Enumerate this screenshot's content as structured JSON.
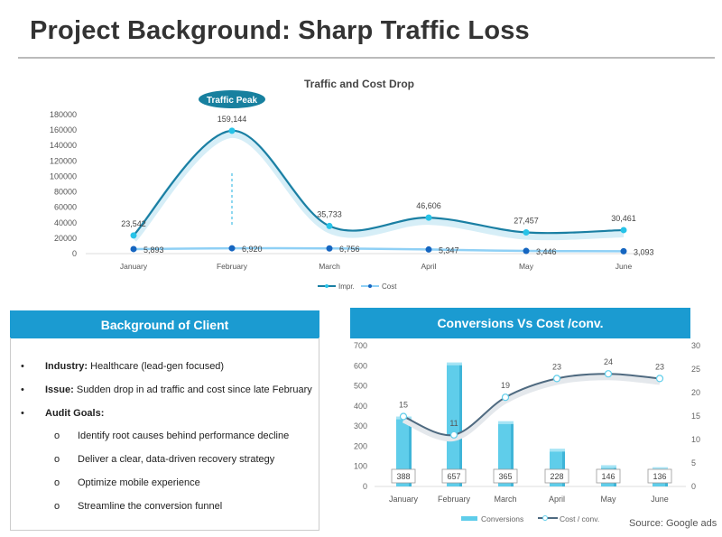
{
  "title": "Project Background: Sharp Traffic Loss",
  "client_box": {
    "header": "Background of Client",
    "bullets": [
      {
        "label": "Industry:",
        "text": " Healthcare (lead-gen focused)"
      },
      {
        "label": "Issue:",
        "text": " Sudden drop in ad traffic and cost since late February"
      },
      {
        "label": "Audit Goals:",
        "text": ""
      }
    ],
    "sub_bullets": [
      "Identify root causes behind performance decline",
      "Deliver a clear, data-driven recovery strategy",
      "Optimize mobile experience",
      "Streamline the conversion funnel"
    ],
    "bullet_marker": "•",
    "sub_marker": "o"
  },
  "conv_header": "Conversions Vs Cost /conv.",
  "source": "Source: Google ads",
  "colors": {
    "header_blue": "#1b9bd1",
    "impr": "#1a7fa3",
    "impr_marker": "#27c3e8",
    "cost_line": "#8fd0f5",
    "cost_marker": "#1565c0",
    "bars": "#5fcdea",
    "cpc_line": "#4f6a80",
    "callout": "#17809f"
  },
  "chart_data": [
    {
      "type": "line",
      "title": "Traffic and Cost Drop",
      "categories": [
        "January",
        "February",
        "March",
        "April",
        "May",
        "June"
      ],
      "series": [
        {
          "name": "Impr.",
          "values": [
            23542,
            159144,
            35733,
            46606,
            27457,
            30461
          ],
          "labels": [
            "23,542",
            "159,144",
            "35,733",
            "46,606",
            "27,457",
            "30,461"
          ]
        },
        {
          "name": "Cost",
          "values": [
            5893,
            6920,
            6756,
            5347,
            3446,
            3093
          ],
          "labels": [
            "5,893",
            "6,920",
            "6,756",
            "5,347",
            "3,446",
            "3,093"
          ]
        }
      ],
      "ylim": [
        0,
        180000
      ],
      "yticks": [
        "0",
        "20000",
        "40000",
        "60000",
        "80000",
        "100000",
        "120000",
        "140000",
        "160000",
        "180000"
      ],
      "annotation": "Traffic Peak",
      "legend": "bottom",
      "grid": false
    },
    {
      "type": "bar+line",
      "categories": [
        "January",
        "February",
        "March",
        "April",
        "May",
        "June"
      ],
      "series": [
        {
          "name": "Conversions",
          "axis": "left",
          "values": [
            388,
            657,
            365,
            228,
            146,
            136
          ]
        },
        {
          "name": "Cost / conv.",
          "axis": "right",
          "values": [
            15,
            11,
            19,
            23,
            24,
            23
          ]
        }
      ],
      "ylim_left": [
        0,
        700
      ],
      "yticks_left": [
        "0",
        "100",
        "200",
        "300",
        "400",
        "500",
        "600",
        "700"
      ],
      "ylim_right": [
        0,
        30
      ],
      "yticks_right": [
        "0",
        "5",
        "10",
        "15",
        "20",
        "25",
        "30"
      ],
      "legend": "bottom",
      "grid": false
    }
  ]
}
